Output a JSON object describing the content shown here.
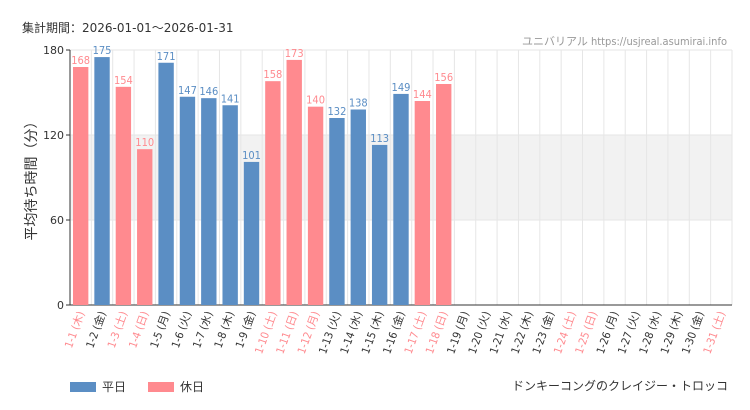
{
  "header": {
    "period_label": "集計期間：2026-01-01～2026-01-31",
    "watermark": "ユニバリアル https://usjreal.asumirai.info"
  },
  "footer": {
    "ride_name": "ドンキーコングのクレイジー・トロッコ"
  },
  "colors": {
    "weekday": "#5b8ec4",
    "holiday": "#ff8a8f",
    "grid": "#e6e6e6",
    "band": "#f2f2f2"
  },
  "chart_data": {
    "type": "bar",
    "ylabel": "平均待ち時間（分）",
    "ylim": [
      0,
      180
    ],
    "yticks": [
      0,
      60,
      120,
      180
    ],
    "highlight_band": [
      60,
      120
    ],
    "legend": [
      {
        "key": "weekday",
        "label": "平日"
      },
      {
        "key": "holiday",
        "label": "休日"
      }
    ],
    "categories": [
      "1-1 (木)",
      "1-2 (金)",
      "1-3 (土)",
      "1-4 (日)",
      "1-5 (月)",
      "1-6 (火)",
      "1-7 (水)",
      "1-8 (木)",
      "1-9 (金)",
      "1-10 (土)",
      "1-11 (日)",
      "1-12 (月)",
      "1-13 (火)",
      "1-14 (水)",
      "1-15 (木)",
      "1-16 (金)",
      "1-17 (土)",
      "1-18 (日)",
      "1-19 (月)",
      "1-20 (火)",
      "1-21 (水)",
      "1-22 (木)",
      "1-23 (金)",
      "1-24 (土)",
      "1-25 (日)",
      "1-26 (月)",
      "1-27 (火)",
      "1-28 (水)",
      "1-29 (木)",
      "1-30 (金)",
      "1-31 (土)"
    ],
    "day_type": [
      "holiday",
      "weekday",
      "holiday",
      "holiday",
      "weekday",
      "weekday",
      "weekday",
      "weekday",
      "weekday",
      "holiday",
      "holiday",
      "holiday",
      "weekday",
      "weekday",
      "weekday",
      "weekday",
      "holiday",
      "holiday",
      "weekday",
      "weekday",
      "weekday",
      "weekday",
      "weekday",
      "holiday",
      "holiday",
      "weekday",
      "weekday",
      "weekday",
      "weekday",
      "weekday",
      "holiday"
    ],
    "values": [
      168,
      175,
      154,
      110,
      171,
      147,
      146,
      141,
      101,
      158,
      173,
      140,
      132,
      138,
      113,
      149,
      144,
      156,
      null,
      null,
      null,
      null,
      null,
      null,
      null,
      null,
      null,
      null,
      null,
      null,
      null
    ]
  }
}
